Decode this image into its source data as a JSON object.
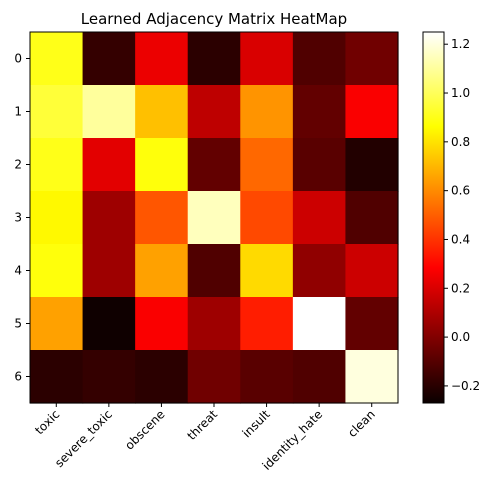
{
  "chart_data": {
    "type": "heatmap",
    "title": "Learned Adjacency Matrix HeatMap",
    "xlabel": "",
    "ylabel": "",
    "x_categories": [
      "toxic",
      "severe_toxic",
      "obscene",
      "threat",
      "insult",
      "identity_hate",
      "clean"
    ],
    "y_categories": [
      "0",
      "1",
      "2",
      "3",
      "4",
      "5",
      "6"
    ],
    "values": [
      [
        0.9,
        -0.18,
        0.22,
        -0.2,
        0.18,
        -0.12,
        -0.05
      ],
      [
        0.95,
        1.1,
        0.72,
        0.12,
        0.62,
        -0.08,
        0.25
      ],
      [
        0.9,
        0.2,
        0.88,
        -0.08,
        0.52,
        -0.1,
        -0.22
      ],
      [
        0.85,
        0.05,
        0.48,
        1.15,
        0.45,
        0.15,
        -0.12
      ],
      [
        0.88,
        0.05,
        0.65,
        -0.12,
        0.78,
        0.02,
        0.15
      ],
      [
        0.65,
        -0.26,
        0.25,
        0.05,
        0.35,
        1.25,
        -0.08
      ],
      [
        -0.2,
        -0.18,
        -0.2,
        -0.05,
        -0.1,
        -0.12,
        1.2
      ]
    ],
    "colormap": "hot",
    "vmin": -0.27,
    "vmax": 1.25,
    "colorbar_ticks": [
      1.2,
      1.0,
      0.8,
      0.6,
      0.4,
      0.2,
      0.0,
      -0.2
    ],
    "colorbar_tick_labels": [
      "1.2",
      "1.0",
      "0.8",
      "0.6",
      "0.4",
      "0.2",
      "0.0",
      "−0.2"
    ],
    "grid": false,
    "colorbar_position": "right"
  }
}
